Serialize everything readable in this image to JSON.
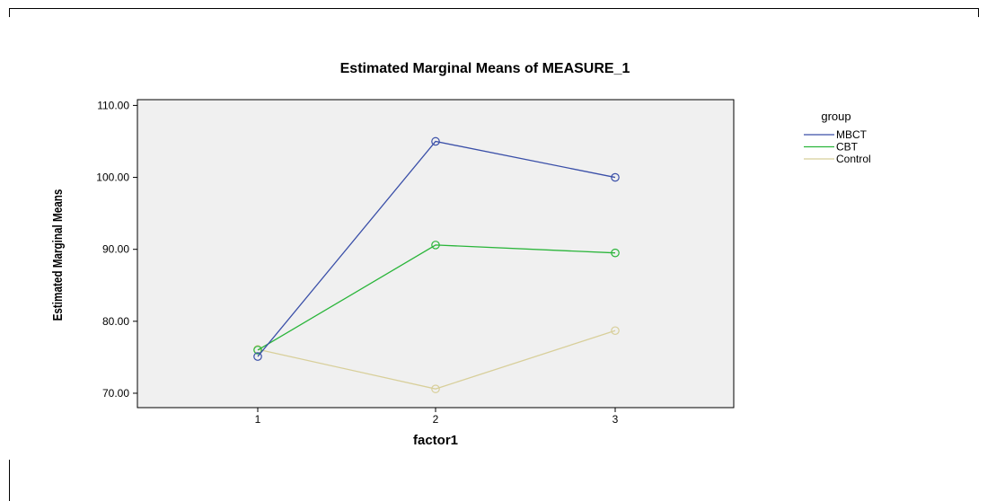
{
  "chart_data": {
    "type": "line",
    "title": "Estimated Marginal Means of MEASURE_1",
    "xlabel": "factor1",
    "ylabel": "Estimated Marginal Means",
    "categories": [
      "1",
      "2",
      "3"
    ],
    "y_ticks": [
      "70.00",
      "80.00",
      "90.00",
      "100.00",
      "110.00"
    ],
    "ylim": [
      68,
      110.8
    ],
    "grid": false,
    "legend_title": "group",
    "legend_position": "top-right, outside plot",
    "series": [
      {
        "name": "MBCT",
        "color": "#3a4fa8",
        "values": [
          75.1,
          105.0,
          100.0
        ]
      },
      {
        "name": "CBT",
        "color": "#2ab53a",
        "values": [
          76.0,
          90.6,
          89.5
        ]
      },
      {
        "name": "Control",
        "color": "#d8cf9a",
        "values": [
          76.1,
          70.6,
          78.7
        ]
      }
    ],
    "plot_background": "#f0f0f0"
  }
}
